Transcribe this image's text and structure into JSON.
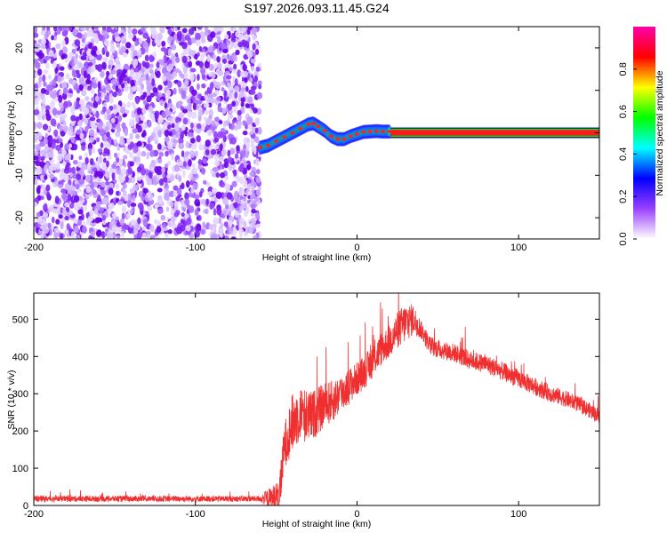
{
  "chart_data": [
    {
      "type": "heatmap",
      "title": "S197.2026.093.11.45.G24",
      "xlabel": "Height of straight line (km)",
      "ylabel": "Frequency (Hz)",
      "xlim": [
        -200,
        150
      ],
      "ylim": [
        -25,
        25
      ],
      "x_ticks": [
        -200,
        -100,
        0,
        100
      ],
      "y_ticks": [
        -20,
        -10,
        0,
        10,
        20
      ],
      "noise_region_x": [
        -200,
        -60
      ],
      "carrier_band_hz": [
        -1,
        1
      ],
      "carrier_track": {
        "x": [
          -60,
          -55,
          -50,
          -45,
          -40,
          -35,
          -30,
          -27,
          -24,
          -20,
          -16,
          -12,
          -8,
          -4,
          0,
          4,
          8,
          12,
          16,
          20
        ],
        "y": [
          -3.5,
          -3.0,
          -2.0,
          -1.0,
          0.0,
          1.0,
          2.0,
          2.2,
          1.5,
          0.5,
          -0.8,
          -1.5,
          -1.5,
          -0.8,
          -0.3,
          0.2,
          0.3,
          0.4,
          0.3,
          0.3
        ]
      },
      "colorbar": {
        "label": "Normalized spectral amplitude",
        "range": [
          0,
          1
        ],
        "ticks": [
          "0.0",
          "0.2",
          "0.4",
          "0.6",
          "0.8"
        ],
        "colors": [
          "#ffffff",
          "#9a40ff",
          "#0000ff",
          "#00ffff",
          "#00ff00",
          "#ffff00",
          "#ff0000",
          "#ff00aa"
        ]
      }
    },
    {
      "type": "line",
      "xlabel": "Height of straight line (km)",
      "ylabel": "SNR (10 * v/v)",
      "xlim": [
        -200,
        150
      ],
      "ylim": [
        0,
        570
      ],
      "x_ticks": [
        -200,
        -100,
        0,
        100
      ],
      "y_ticks": [
        0,
        100,
        200,
        300,
        400,
        500
      ],
      "color": "#f03030",
      "series": [
        {
          "name": "SNR",
          "x": [
            -200,
            -150,
            -100,
            -60,
            -48,
            -45,
            -40,
            -35,
            -30,
            -25,
            -20,
            -15,
            -10,
            -5,
            0,
            5,
            10,
            15,
            20,
            25,
            30,
            35,
            40,
            45,
            50,
            60,
            70,
            80,
            90,
            100,
            110,
            120,
            130,
            140,
            150
          ],
          "y": [
            18,
            18,
            18,
            18,
            20,
            160,
            220,
            250,
            235,
            250,
            270,
            280,
            300,
            320,
            340,
            360,
            390,
            420,
            440,
            470,
            490,
            500,
            470,
            430,
            420,
            410,
            390,
            380,
            360,
            340,
            320,
            300,
            285,
            265,
            240
          ]
        }
      ],
      "noise_amplitude": [
        [
          -200,
          8
        ],
        [
          -60,
          8
        ],
        [
          -48,
          50
        ],
        [
          -40,
          80
        ],
        [
          -20,
          60
        ],
        [
          0,
          45
        ],
        [
          20,
          45
        ],
        [
          30,
          55
        ],
        [
          40,
          25
        ],
        [
          100,
          25
        ],
        [
          150,
          20
        ]
      ]
    }
  ]
}
